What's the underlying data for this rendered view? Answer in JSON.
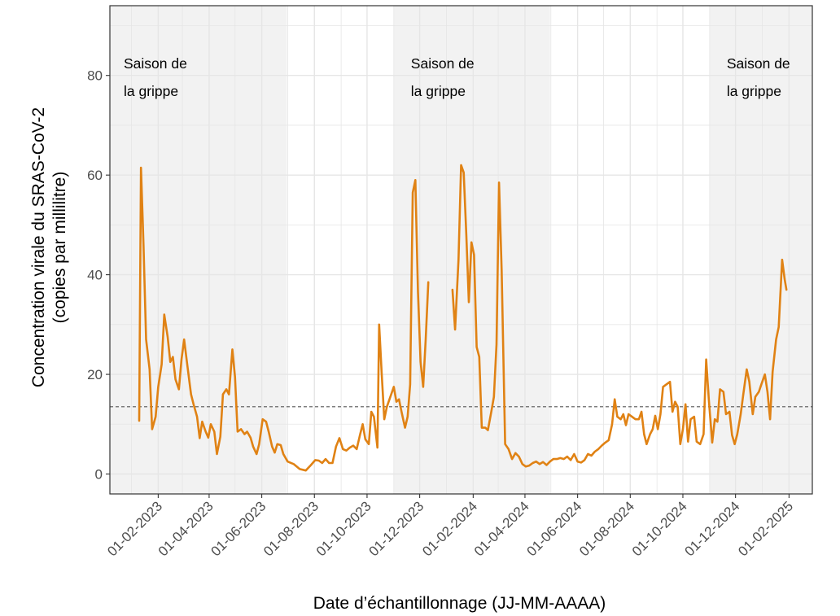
{
  "chart_data": {
    "type": "line",
    "xlabel": "Date d’échantillonnage (JJ-MM-AAAA)",
    "ylabel_line1": "Concentration virale du SRAS-CoV-2",
    "ylabel_line2": "(copies par millilitre)",
    "x_range": [
      "2022-12-07",
      "2025-02-28"
    ],
    "ylim": [
      -4,
      94
    ],
    "yticks": [
      0,
      20,
      40,
      60,
      80
    ],
    "ytick_labels": [
      "0",
      "20",
      "40",
      "60",
      "80"
    ],
    "xticks": [
      "2023-02-01",
      "2023-04-01",
      "2023-06-01",
      "2023-08-01",
      "2023-10-01",
      "2023-12-01",
      "2024-02-01",
      "2024-04-01",
      "2024-06-01",
      "2024-08-01",
      "2024-10-01",
      "2024-12-01",
      "2025-02-01"
    ],
    "xtick_labels": [
      "01-02-2023",
      "01-04-2023",
      "01-06-2023",
      "01-08-2023",
      "01-10-2023",
      "01-12-2023",
      "01-02-2024",
      "01-04-2024",
      "01-06-2024",
      "01-08-2024",
      "01-10-2024",
      "01-12-2024",
      "01-02-2025"
    ],
    "grid": true,
    "reference_line": 13.5,
    "shaded_periods": [
      {
        "start": "2022-12-07",
        "end": "2023-06-30",
        "label_line1": "Saison de",
        "label_line2": "la grippe"
      },
      {
        "start": "2023-11-01",
        "end": "2024-04-30",
        "label_line1": "Saison de",
        "label_line2": "la grippe"
      },
      {
        "start": "2024-11-01",
        "end": "2025-02-28",
        "label_line1": "Saison de",
        "label_line2": "la grippe"
      }
    ],
    "colors": {
      "line": "#e08214",
      "shading": "#f2f2f2",
      "reference_line": "#555555",
      "grid": "#e6e6e6",
      "frame": "#333333"
    },
    "series": [
      {
        "segments": [
          [
            [
              "2023-01-10",
              10.7
            ],
            [
              "2023-01-12",
              61.5
            ],
            [
              "2023-01-15",
              46
            ],
            [
              "2023-01-18",
              27
            ],
            [
              "2023-01-22",
              21
            ],
            [
              "2023-01-25",
              9
            ],
            [
              "2023-01-29",
              11.5
            ],
            [
              "2023-02-01",
              17.5
            ],
            [
              "2023-02-05",
              22
            ],
            [
              "2023-02-08",
              32
            ],
            [
              "2023-02-12",
              27.5
            ],
            [
              "2023-02-15",
              22.5
            ],
            [
              "2023-02-18",
              23.5
            ],
            [
              "2023-02-21",
              19
            ],
            [
              "2023-02-25",
              17
            ],
            [
              "2023-02-28",
              23
            ],
            [
              "2023-03-03",
              27
            ],
            [
              "2023-03-07",
              21.5
            ],
            [
              "2023-03-11",
              16
            ],
            [
              "2023-03-14",
              14
            ],
            [
              "2023-03-18",
              11.5
            ],
            [
              "2023-03-21",
              7.2
            ],
            [
              "2023-03-24",
              10.5
            ],
            [
              "2023-03-28",
              8.5
            ],
            [
              "2023-03-31",
              7.3
            ],
            [
              "2023-04-03",
              10
            ],
            [
              "2023-04-07",
              8.5
            ],
            [
              "2023-04-10",
              4
            ],
            [
              "2023-04-14",
              7.5
            ],
            [
              "2023-04-17",
              16
            ],
            [
              "2023-04-21",
              17
            ],
            [
              "2023-04-24",
              16
            ],
            [
              "2023-04-28",
              25
            ],
            [
              "2023-05-01",
              19.5
            ],
            [
              "2023-05-04",
              8.5
            ],
            [
              "2023-05-08",
              9
            ],
            [
              "2023-05-12",
              8
            ],
            [
              "2023-05-15",
              8.5
            ],
            [
              "2023-05-19",
              7.3
            ],
            [
              "2023-05-22",
              5.5
            ],
            [
              "2023-05-26",
              4
            ],
            [
              "2023-05-29",
              6
            ],
            [
              "2023-06-02",
              11
            ],
            [
              "2023-06-06",
              10.5
            ],
            [
              "2023-06-09",
              8.5
            ],
            [
              "2023-06-13",
              5.5
            ],
            [
              "2023-06-16",
              4.3
            ],
            [
              "2023-06-19",
              6
            ],
            [
              "2023-06-23",
              5.8
            ],
            [
              "2023-06-26",
              4
            ],
            [
              "2023-07-01",
              2.5
            ],
            [
              "2023-07-08",
              2
            ],
            [
              "2023-07-15",
              1
            ],
            [
              "2023-07-22",
              0.7
            ],
            [
              "2023-07-28",
              1.8
            ],
            [
              "2023-08-02",
              2.8
            ],
            [
              "2023-08-06",
              2.7
            ],
            [
              "2023-08-10",
              2.2
            ],
            [
              "2023-08-14",
              3
            ],
            [
              "2023-08-18",
              2.2
            ],
            [
              "2023-08-22",
              2.2
            ],
            [
              "2023-08-26",
              5.5
            ],
            [
              "2023-08-30",
              7.2
            ],
            [
              "2023-09-03",
              5
            ],
            [
              "2023-09-07",
              4.7
            ],
            [
              "2023-09-11",
              5.3
            ],
            [
              "2023-09-15",
              5.7
            ],
            [
              "2023-09-19",
              5
            ],
            [
              "2023-09-23",
              8
            ],
            [
              "2023-09-26",
              10
            ],
            [
              "2023-09-29",
              7
            ],
            [
              "2023-10-03",
              6
            ],
            [
              "2023-10-06",
              12.5
            ],
            [
              "2023-10-09",
              11.5
            ],
            [
              "2023-10-13",
              5.3
            ],
            [
              "2023-10-15",
              30
            ],
            [
              "2023-10-18",
              20
            ],
            [
              "2023-10-21",
              11
            ],
            [
              "2023-10-24",
              13.5
            ],
            [
              "2023-10-28",
              15.5
            ],
            [
              "2023-11-01",
              17.5
            ],
            [
              "2023-11-04",
              14.5
            ],
            [
              "2023-11-07",
              15
            ],
            [
              "2023-11-10",
              12.5
            ],
            [
              "2023-11-14",
              9.3
            ],
            [
              "2023-11-17",
              11.5
            ],
            [
              "2023-11-20",
              18
            ],
            [
              "2023-11-23",
              56.5
            ],
            [
              "2023-11-26",
              59
            ],
            [
              "2023-11-29",
              36.5
            ],
            [
              "2023-12-02",
              22.5
            ],
            [
              "2023-12-05",
              17.5
            ],
            [
              "2023-12-08",
              27
            ],
            [
              "2023-12-11",
              38.5
            ]
          ],
          [
            [
              "2024-01-08",
              37
            ],
            [
              "2024-01-11",
              29
            ],
            [
              "2024-01-15",
              43
            ],
            [
              "2024-01-18",
              62
            ],
            [
              "2024-01-21",
              60.5
            ],
            [
              "2024-01-24",
              48
            ],
            [
              "2024-01-27",
              34.5
            ],
            [
              "2024-01-30",
              46.5
            ],
            [
              "2024-02-02",
              44
            ],
            [
              "2024-02-05",
              25.5
            ],
            [
              "2024-02-08",
              23.5
            ],
            [
              "2024-02-11",
              9.3
            ],
            [
              "2024-02-15",
              9.3
            ],
            [
              "2024-02-18",
              8.8
            ],
            [
              "2024-02-22",
              12.5
            ],
            [
              "2024-02-25",
              15.5
            ],
            [
              "2024-02-28",
              26
            ],
            [
              "2024-03-02",
              58.5
            ],
            [
              "2024-03-05",
              41
            ],
            [
              "2024-03-09",
              6
            ],
            [
              "2024-03-13",
              5
            ],
            [
              "2024-03-17",
              3
            ],
            [
              "2024-03-21",
              4.2
            ],
            [
              "2024-03-25",
              3.5
            ],
            [
              "2024-03-29",
              2
            ],
            [
              "2024-04-02",
              1.5
            ],
            [
              "2024-04-06",
              1.7
            ],
            [
              "2024-04-10",
              2.2
            ],
            [
              "2024-04-14",
              2.5
            ],
            [
              "2024-04-18",
              2
            ],
            [
              "2024-04-22",
              2.4
            ],
            [
              "2024-04-26",
              1.8
            ],
            [
              "2024-04-30",
              2.5
            ],
            [
              "2024-05-04",
              3
            ],
            [
              "2024-05-08",
              3
            ],
            [
              "2024-05-12",
              3.2
            ],
            [
              "2024-05-16",
              3
            ],
            [
              "2024-05-20",
              3.5
            ],
            [
              "2024-05-24",
              2.8
            ],
            [
              "2024-05-28",
              4
            ],
            [
              "2024-06-01",
              2.5
            ],
            [
              "2024-06-05",
              2.3
            ],
            [
              "2024-06-09",
              2.8
            ],
            [
              "2024-06-13",
              4
            ],
            [
              "2024-06-17",
              3.7
            ],
            [
              "2024-06-21",
              4.5
            ],
            [
              "2024-06-25",
              5
            ],
            [
              "2024-06-29",
              5.7
            ],
            [
              "2024-07-03",
              6.3
            ],
            [
              "2024-07-07",
              6.8
            ],
            [
              "2024-07-11",
              10
            ],
            [
              "2024-07-14",
              15
            ],
            [
              "2024-07-17",
              11.5
            ],
            [
              "2024-07-21",
              11
            ],
            [
              "2024-07-24",
              12
            ],
            [
              "2024-07-27",
              9.8
            ],
            [
              "2024-07-30",
              12
            ],
            [
              "2024-08-03",
              11.5
            ],
            [
              "2024-08-07",
              11
            ],
            [
              "2024-08-11",
              11
            ],
            [
              "2024-08-14",
              12.5
            ],
            [
              "2024-08-17",
              8
            ],
            [
              "2024-08-20",
              6
            ],
            [
              "2024-08-24",
              8
            ],
            [
              "2024-08-27",
              9
            ],
            [
              "2024-08-30",
              11.7
            ],
            [
              "2024-09-02",
              9
            ],
            [
              "2024-09-05",
              12
            ],
            [
              "2024-09-08",
              17.5
            ],
            [
              "2024-09-12",
              18
            ],
            [
              "2024-09-16",
              18.5
            ],
            [
              "2024-09-19",
              12.5
            ],
            [
              "2024-09-22",
              14.5
            ],
            [
              "2024-09-25",
              13.5
            ],
            [
              "2024-09-28",
              6
            ],
            [
              "2024-10-01",
              9
            ],
            [
              "2024-10-04",
              14
            ],
            [
              "2024-10-07",
              6.5
            ],
            [
              "2024-10-10",
              11
            ],
            [
              "2024-10-14",
              11.5
            ],
            [
              "2024-10-17",
              6.5
            ],
            [
              "2024-10-21",
              6
            ],
            [
              "2024-10-25",
              8
            ],
            [
              "2024-10-28",
              23
            ],
            [
              "2024-10-31",
              15
            ],
            [
              "2024-11-04",
              6.3
            ],
            [
              "2024-11-07",
              11
            ],
            [
              "2024-11-10",
              10.5
            ],
            [
              "2024-11-13",
              17
            ],
            [
              "2024-11-17",
              16.5
            ],
            [
              "2024-11-20",
              12
            ],
            [
              "2024-11-24",
              12.5
            ],
            [
              "2024-11-27",
              7.8
            ],
            [
              "2024-11-30",
              6
            ],
            [
              "2024-12-03",
              8
            ],
            [
              "2024-12-07",
              12
            ],
            [
              "2024-12-10",
              16
            ],
            [
              "2024-12-14",
              21
            ],
            [
              "2024-12-17",
              18.5
            ],
            [
              "2024-12-21",
              12
            ],
            [
              "2024-12-24",
              15.5
            ],
            [
              "2024-12-28",
              16.5
            ],
            [
              "2024-12-31",
              18
            ],
            [
              "2025-01-04",
              20
            ],
            [
              "2025-01-07",
              16.5
            ],
            [
              "2025-01-10",
              11
            ],
            [
              "2025-01-13",
              20.5
            ],
            [
              "2025-01-17",
              27
            ],
            [
              "2025-01-20",
              29.5
            ],
            [
              "2025-01-24",
              43
            ],
            [
              "2025-01-27",
              39
            ],
            [
              "2025-01-29",
              37
            ]
          ]
        ]
      }
    ]
  }
}
